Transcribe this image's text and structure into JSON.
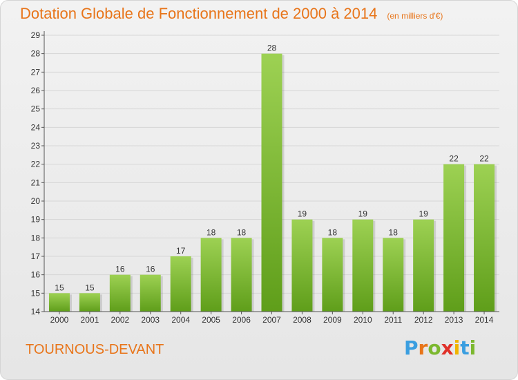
{
  "chart_data": {
    "type": "bar",
    "title": "Dotation Globale de Fonctionnement de 2000 à 2014",
    "subtitle": "(en milliers d'€)",
    "categories": [
      "2000",
      "2001",
      "2002",
      "2003",
      "2004",
      "2005",
      "2006",
      "2007",
      "2008",
      "2009",
      "2010",
      "2011",
      "2012",
      "2013",
      "2014"
    ],
    "values": [
      15,
      15,
      16,
      16,
      17,
      18,
      18,
      28,
      19,
      18,
      19,
      18,
      19,
      22,
      22
    ],
    "ylim": [
      14,
      29
    ],
    "yticks": [
      14,
      15,
      16,
      17,
      18,
      19,
      20,
      21,
      22,
      23,
      24,
      25,
      26,
      27,
      28,
      29
    ],
    "grid": true,
    "bar_color_top": "#9dd153",
    "bar_color_bottom": "#5f9e1a",
    "grid_color": "#d6d6d6"
  },
  "commune": "TOURNOUS-DEVANT",
  "logo": {
    "letters": [
      "P",
      "r",
      "o",
      "x",
      "i",
      "t",
      "i"
    ],
    "colors": [
      "#3a9ee0",
      "#e8751a",
      "#7cb82f",
      "#e0312a",
      "#f0b400",
      "#3a9ee0",
      "#7cb82f"
    ]
  }
}
